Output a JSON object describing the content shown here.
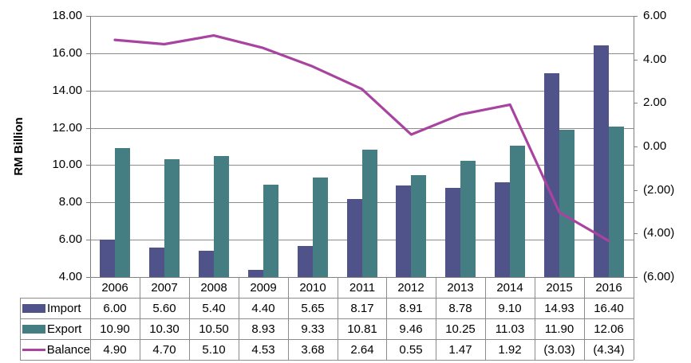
{
  "chart_data": {
    "type": "combo-bar-line",
    "title": "",
    "ylabel": "RM Billion",
    "categories": [
      "2006",
      "2007",
      "2008",
      "2009",
      "2010",
      "2011",
      "2012",
      "2013",
      "2014",
      "2015",
      "2016"
    ],
    "series": [
      {
        "name": "Import",
        "type": "bar",
        "axis": "primary",
        "color": "#50528A",
        "values": [
          6.0,
          5.6,
          5.4,
          4.4,
          5.65,
          8.17,
          8.91,
          8.78,
          9.1,
          14.93,
          16.4
        ]
      },
      {
        "name": "Export",
        "type": "bar",
        "axis": "primary",
        "color": "#447E83",
        "values": [
          10.9,
          10.3,
          10.5,
          8.93,
          9.33,
          10.81,
          9.46,
          10.25,
          11.03,
          11.9,
          12.06
        ]
      },
      {
        "name": "Balance",
        "type": "line",
        "axis": "secondary",
        "color": "#A844A0",
        "values": [
          4.9,
          4.7,
          5.1,
          4.53,
          3.68,
          2.64,
          0.55,
          1.47,
          1.92,
          -3.03,
          -4.34
        ]
      }
    ],
    "left_axis": {
      "min": 4,
      "max": 18,
      "step": 2,
      "ticks": [
        "18.00",
        "16.00",
        "14.00",
        "12.00",
        "10.00",
        "8.00",
        "6.00",
        "4.00"
      ]
    },
    "right_axis": {
      "min": -6,
      "max": 6,
      "step": 2,
      "negative_format": "parentheses",
      "ticks": [
        "6.00",
        "4.00",
        "2.00",
        "0.00",
        "(2.00)",
        "(4.00)",
        "(6.00)"
      ]
    },
    "grid": true,
    "legend_position": "data-table-keys",
    "data_table": {
      "rows": [
        {
          "label": "Import",
          "cells": [
            "6.00",
            "5.60",
            "5.40",
            "4.40",
            "5.65",
            "8.17",
            "8.91",
            "8.78",
            "9.10",
            "14.93",
            "16.40"
          ]
        },
        {
          "label": "Export",
          "cells": [
            "10.90",
            "10.30",
            "10.50",
            "8.93",
            "9.33",
            "10.81",
            "9.46",
            "10.25",
            "11.03",
            "11.90",
            "12.06"
          ]
        },
        {
          "label": "Balance",
          "cells": [
            "4.90",
            "4.70",
            "5.10",
            "4.53",
            "3.68",
            "2.64",
            "0.55",
            "1.47",
            "1.92",
            "(3.03)",
            "(4.34)"
          ]
        }
      ]
    },
    "colors": {
      "grid": "#8C8C8C",
      "axis": "#7F7F7F",
      "text": "#000000",
      "background": "#FFFFFF"
    }
  }
}
